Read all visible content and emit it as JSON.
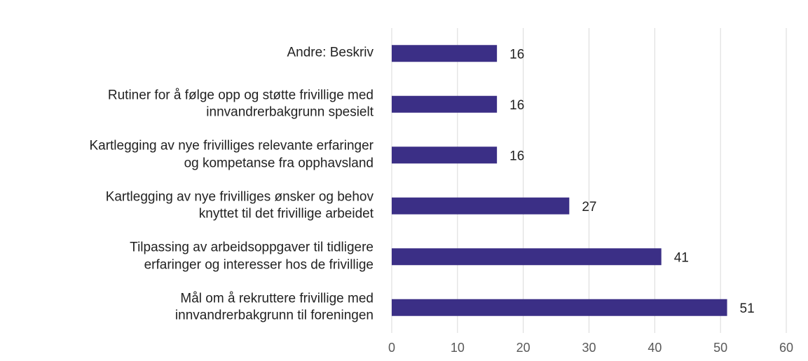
{
  "chart_data": {
    "type": "bar",
    "orientation": "horizontal",
    "categories": [
      "Andre: Beskriv",
      "Rutiner for å følge opp og støtte frivillige med\ninnvandrerbakgrunn spesielt",
      "Kartlegging av nye frivilliges relevante erfaringer\nog kompetanse fra opphavsland",
      "Kartlegging av nye frivilliges ønsker og behov\nknyttet til det frivillige arbeidet",
      "Tilpassing av arbeidsoppgaver til tidligere\nerfaringer og interesser hos de frivillige",
      "Mål om å rekruttere frivillige med\ninnvandrerbakgrunn til foreningen"
    ],
    "values": [
      16,
      16,
      16,
      27,
      41,
      51
    ],
    "color": "#3b2f86",
    "xlim": [
      0,
      60
    ],
    "xticks": [
      0,
      10,
      20,
      30,
      40,
      50,
      60
    ],
    "grid": true
  }
}
